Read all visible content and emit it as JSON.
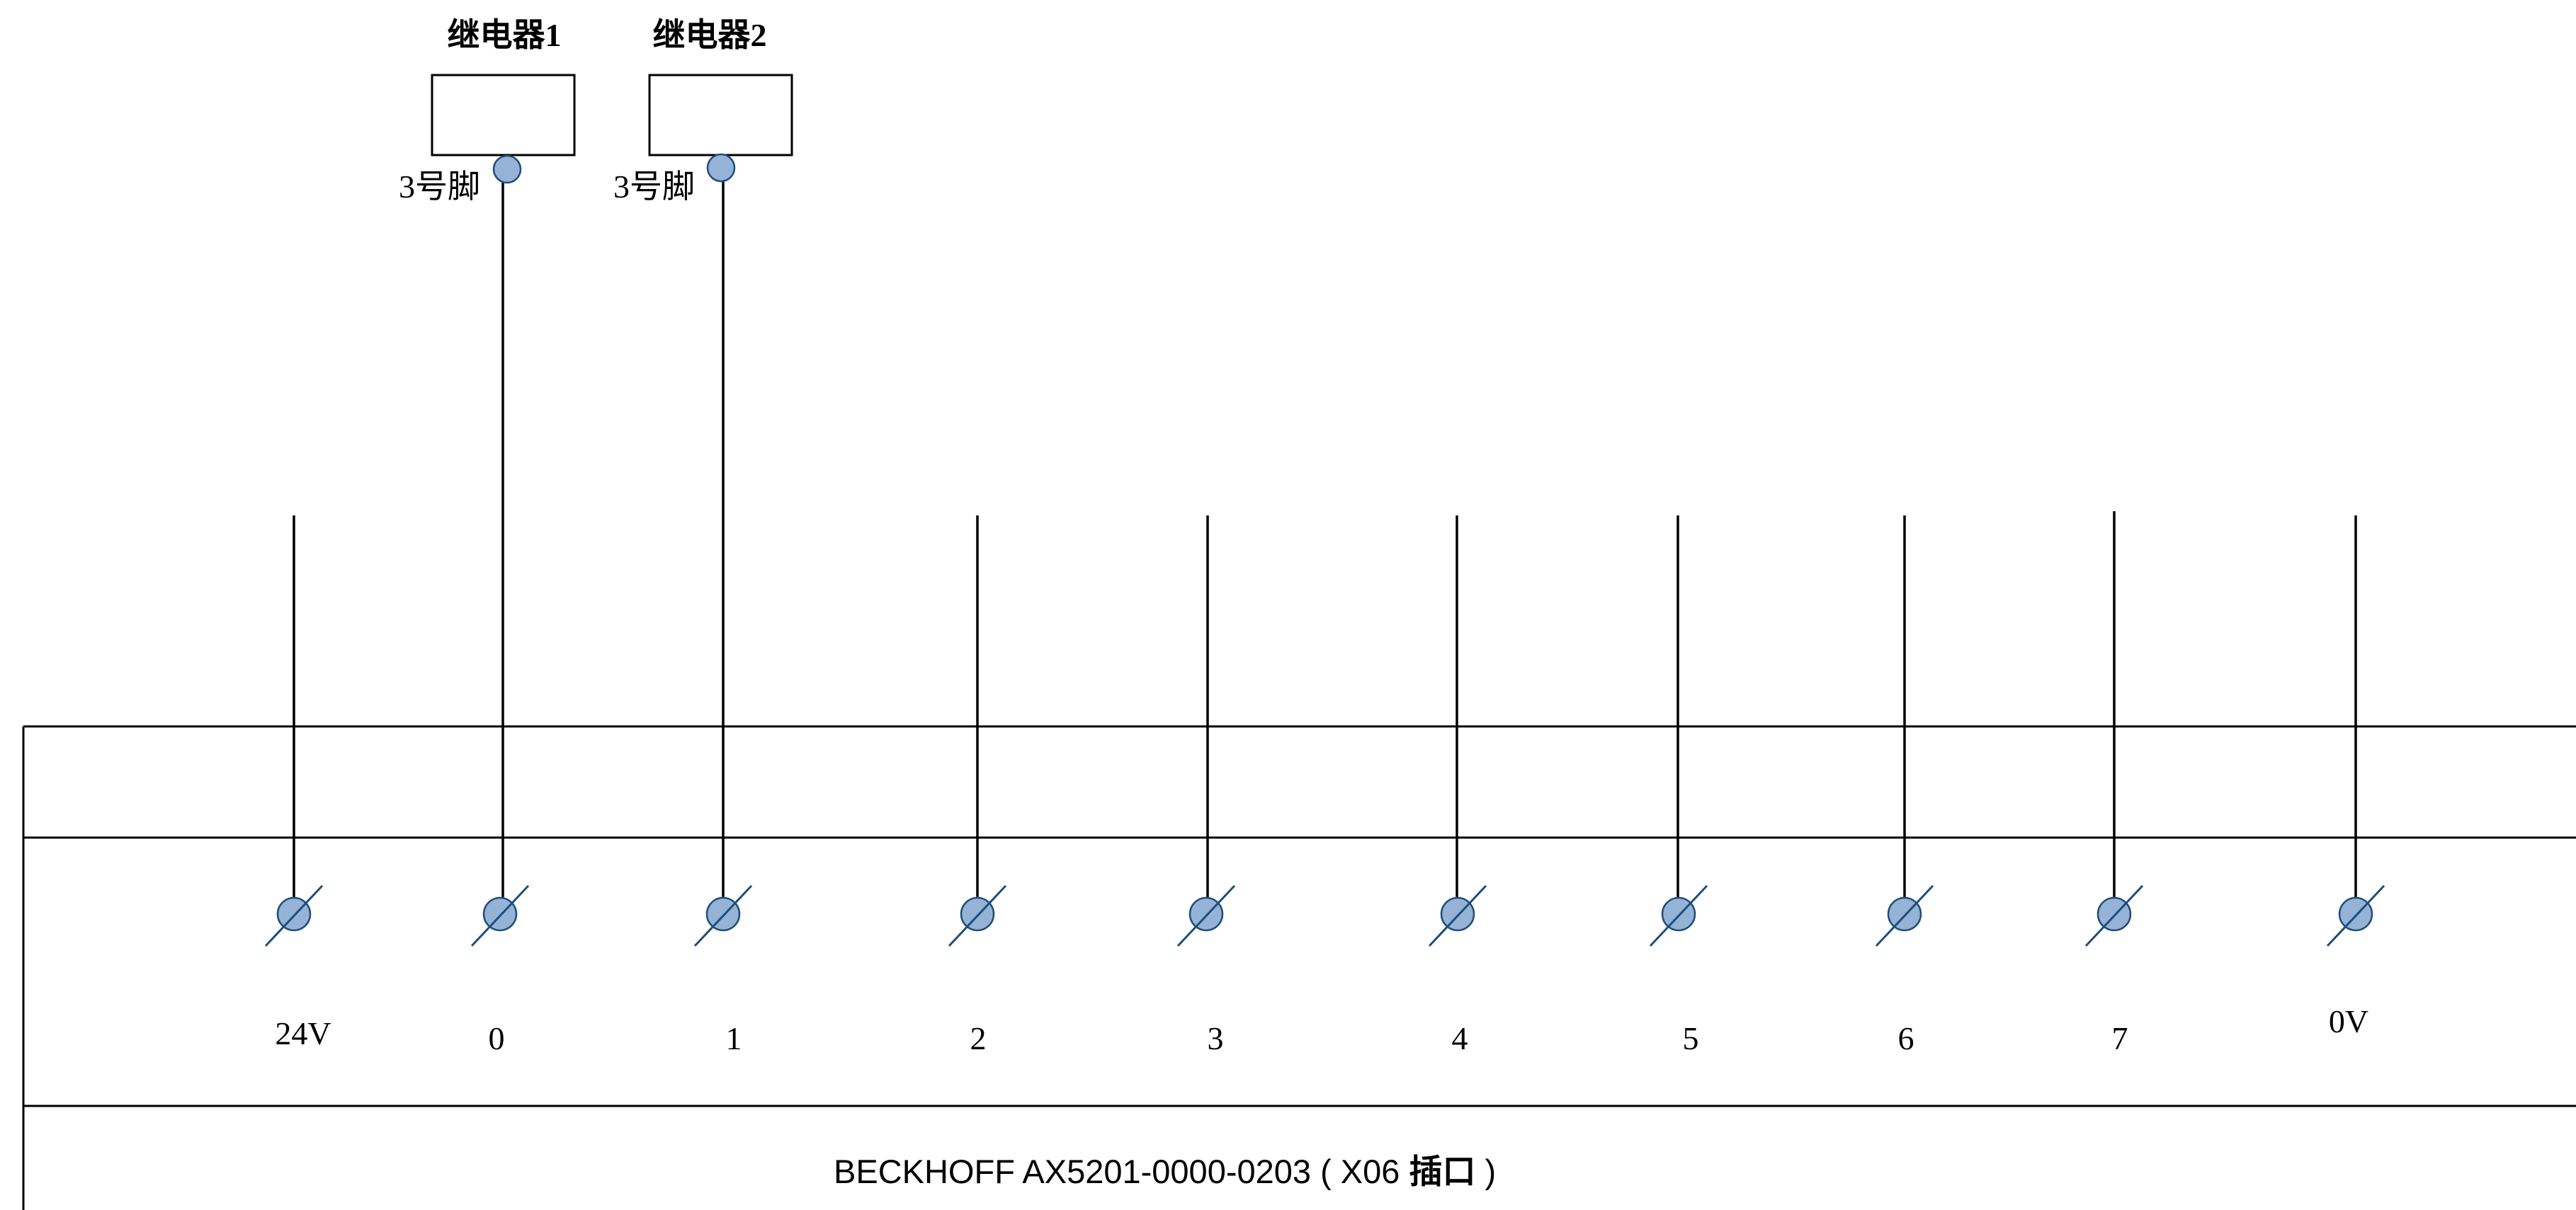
{
  "relays": [
    {
      "title": "继电器1",
      "pin_label": "3号脚"
    },
    {
      "title": "继电器2",
      "pin_label": "3号脚"
    }
  ],
  "terminals": [
    {
      "label": "24V"
    },
    {
      "label": "0"
    },
    {
      "label": "1"
    },
    {
      "label": "2"
    },
    {
      "label": "3"
    },
    {
      "label": "4"
    },
    {
      "label": "5"
    },
    {
      "label": "6"
    },
    {
      "label": "7"
    },
    {
      "label": "0V"
    }
  ],
  "device": {
    "label_prefix": "BECKHOFF AX5201-0000-0203 ( X06 ",
    "label_bold": "插口",
    "label_suffix": " )"
  },
  "colors": {
    "terminal_fill": "#95b3d7",
    "terminal_stroke": "#1f4e79",
    "line": "#000000"
  }
}
